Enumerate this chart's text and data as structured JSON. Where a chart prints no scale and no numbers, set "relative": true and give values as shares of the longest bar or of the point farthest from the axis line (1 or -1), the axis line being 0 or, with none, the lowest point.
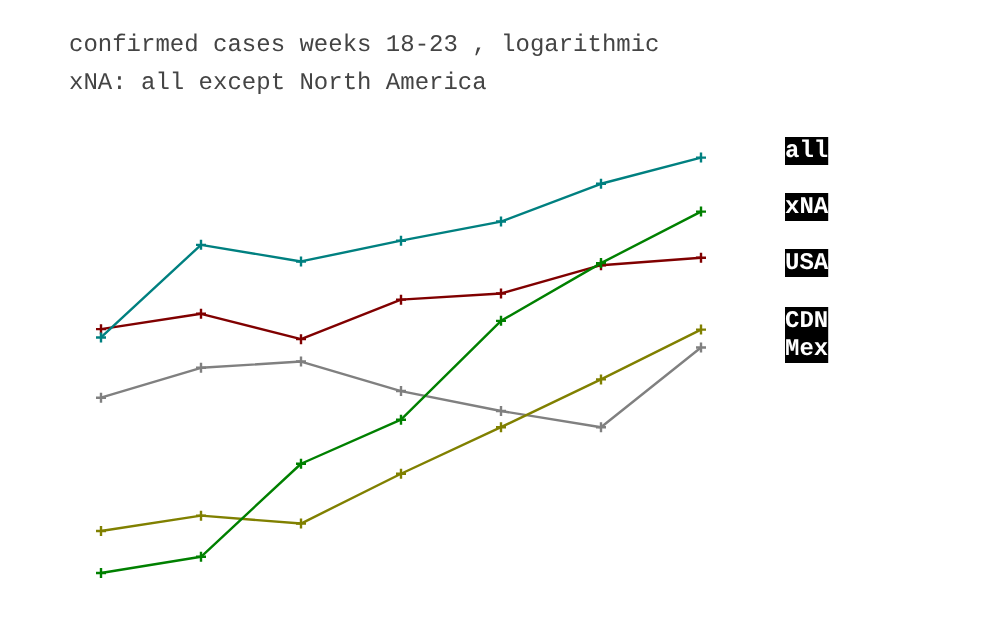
{
  "chart_data": {
    "type": "line",
    "title": "confirmed cases weeks 18-23 , logarithmic",
    "subtitle": "xNA: all except North America",
    "relative": true,
    "categories": [
      null,
      null,
      null,
      null,
      null,
      null,
      null
    ],
    "marker": "cross",
    "grid": false,
    "legend": "right",
    "series": [
      {
        "name": "all",
        "color": "#008080",
        "values": [
          0.567,
          0.79,
          0.75,
          0.8,
          0.846,
          0.937,
          1.0
        ]
      },
      {
        "name": "xNA",
        "color": "#008000",
        "values": [
          0,
          0.039,
          0.263,
          0.369,
          0.607,
          0.746,
          0.87
        ]
      },
      {
        "name": "USA",
        "color": "#800000",
        "values": [
          0.587,
          0.624,
          0.563,
          0.658,
          0.673,
          0.741,
          0.759
        ]
      },
      {
        "name": "CDN",
        "color": "#808000",
        "values": [
          0.101,
          0.138,
          0.119,
          0.239,
          0.351,
          0.466,
          0.586
        ]
      },
      {
        "name": "Mex",
        "color": "#808080",
        "values": [
          0.422,
          0.494,
          0.509,
          0.438,
          0.39,
          0.351,
          0.543
        ]
      }
    ]
  }
}
